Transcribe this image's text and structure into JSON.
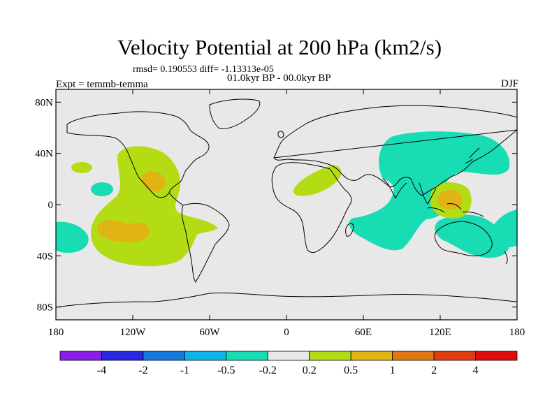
{
  "title": "Velocity Potential at 200 hPa (km2/s)",
  "stats_line": "rmsd= 0.190553 diff= -1.13313e-05",
  "period_line": "01.0kyr BP - 00.0kyr BP",
  "experiment": "Expt = temmb-temma",
  "season": "DJF",
  "map": {
    "lon_ticks": [
      {
        "lon": -180,
        "label": "180"
      },
      {
        "lon": -120,
        "label": "120W"
      },
      {
        "lon": -60,
        "label": "60W"
      },
      {
        "lon": 0,
        "label": "0"
      },
      {
        "lon": 60,
        "label": "60E"
      },
      {
        "lon": 120,
        "label": "120E"
      },
      {
        "lon": 180,
        "label": "180"
      }
    ],
    "lat_ticks": [
      {
        "lat": 80,
        "label": "80N"
      },
      {
        "lat": 40,
        "label": "40N"
      },
      {
        "lat": 0,
        "label": "0"
      },
      {
        "lat": -40,
        "label": "40S"
      },
      {
        "lat": -80,
        "label": "80S"
      }
    ],
    "background_color": "#e8e8e8"
  },
  "colorbar": {
    "colors": [
      "#8a1ee6",
      "#2828e0",
      "#1478dc",
      "#0cb4e8",
      "#18dcb4",
      "#e8e8e8",
      "#b4dc14",
      "#e0b414",
      "#e07814",
      "#e03c14",
      "#e00c0c"
    ],
    "labels": [
      "-4",
      "-2",
      "-1",
      "-0.5",
      "-0.2",
      "0.2",
      "0.5",
      "1",
      "2",
      "4"
    ]
  }
}
